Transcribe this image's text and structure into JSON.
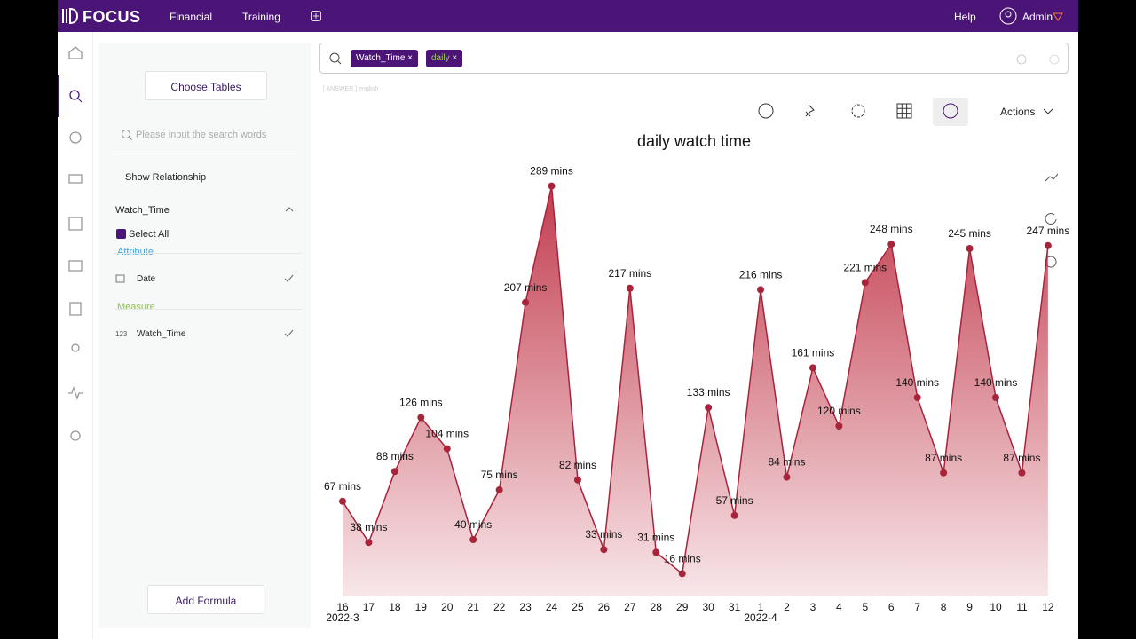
{
  "nav": {
    "brand": "FOCUS",
    "items": [
      "Financial",
      "Training"
    ],
    "help": "Help",
    "user": "Admin"
  },
  "search": {
    "tokens": [
      "Watch_Time",
      "daily"
    ],
    "answer_tag": "[ ANSWER ] english"
  },
  "sidebar": {
    "choose_tables": "Choose Tables",
    "placeholder": "Please input the search words",
    "show_relationship": "Show Relationship",
    "table_name": "Watch_Time",
    "select_all": "Select All",
    "attribute_heading": "Attribute",
    "attribute_field": "Date",
    "measure_heading": "Measure",
    "measure_type": "123",
    "measure_field": "Watch_Time",
    "add_formula": "Add Formula"
  },
  "toolbar": {
    "actions": "Actions"
  },
  "chart_data": {
    "type": "area",
    "title": "daily watch time",
    "categories": [
      "16",
      "17",
      "18",
      "19",
      "20",
      "21",
      "22",
      "23",
      "24",
      "25",
      "26",
      "27",
      "28",
      "29",
      "30",
      "31",
      "1",
      "2",
      "3",
      "4",
      "5",
      "6",
      "7",
      "8",
      "9",
      "10",
      "11",
      "12"
    ],
    "x_group_labels": [
      "2022-3",
      null,
      null,
      null,
      null,
      null,
      null,
      null,
      null,
      null,
      null,
      null,
      null,
      null,
      null,
      null,
      "2022-4",
      null,
      null,
      null,
      null,
      null,
      null,
      null,
      null,
      null,
      null,
      null
    ],
    "values": [
      67,
      38,
      88,
      126,
      104,
      40,
      75,
      207,
      289,
      82,
      33,
      217,
      31,
      16,
      133,
      57,
      216,
      84,
      161,
      120,
      221,
      248,
      140,
      87,
      245,
      140,
      87,
      247
    ],
    "value_labels": [
      "67 mins",
      "38 mins",
      "88 mins",
      "126 mins",
      "104 mins",
      "40 mins",
      "75 mins",
      "207 mins",
      "289 mins",
      "82 mins",
      "33 mins",
      "217 mins",
      "31 mins",
      "16 mins",
      "133 mins",
      "57 mins",
      "216 mins",
      "84 mins",
      "161 mins",
      "120 mins",
      "221 mins",
      "248 mins",
      "140 mins",
      "87 mins",
      "245 mins",
      "140 mins",
      "87 mins",
      "247 mins"
    ],
    "color": "#a8243a"
  }
}
